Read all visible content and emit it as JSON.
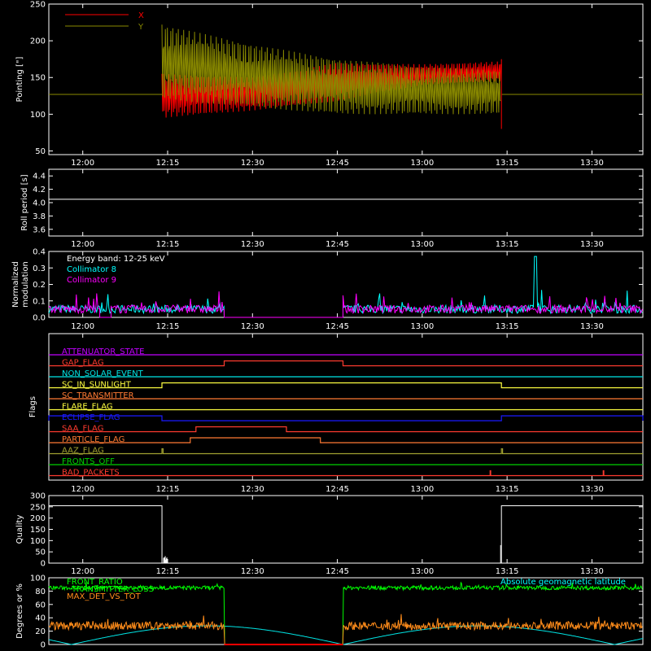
{
  "time_axis": {
    "start": "11:54",
    "end": "13:39",
    "ticks": [
      "12:00",
      "12:15",
      "12:30",
      "12:45",
      "13:00",
      "13:15",
      "13:30"
    ]
  },
  "colors": {
    "x": "#ff0000",
    "y": "#8a8a00",
    "white": "#ffffff",
    "cyan": "#00ffff",
    "magenta": "#ff00ff",
    "green": "#00ff00",
    "orange": "#ff8c1a",
    "flag_magenta": "#c000ff",
    "flag_red": "#ff3b2f",
    "flag_cyan": "#00e5e5",
    "flag_yellow": "#ffff40",
    "flag_orange": "#ff7a33",
    "flag_blue": "#1a1aff",
    "flag_olive": "#a0a030",
    "flag_green": "#00d000"
  },
  "chart_data": [
    {
      "id": "pointing",
      "type": "line",
      "ylabel": "Pointing [\"]",
      "ylim": [
        45,
        250
      ],
      "yticks": [
        50,
        100,
        150,
        200,
        250
      ],
      "legend": [
        "X",
        "Y"
      ],
      "legend_placement": "top-left",
      "series": [
        {
          "name": "X",
          "color": "#ff0000",
          "quiet_value": 127,
          "active_start": "12:14",
          "active_end": "13:14",
          "envelope": [
            {
              "t": "12:14",
              "lo": 95,
              "hi": 155
            },
            {
              "t": "12:30",
              "lo": 105,
              "hi": 150
            },
            {
              "t": "12:45",
              "lo": 118,
              "hi": 170
            },
            {
              "t": "13:00",
              "lo": 140,
              "hi": 168
            },
            {
              "t": "13:14",
              "lo": 145,
              "hi": 172
            }
          ]
        },
        {
          "name": "Y",
          "color": "#8a8a00",
          "quiet_value": 127,
          "envelope": [
            {
              "t": "12:14",
              "lo": 120,
              "hi": 222
            },
            {
              "t": "12:30",
              "lo": 110,
              "hi": 195
            },
            {
              "t": "12:45",
              "lo": 100,
              "hi": 175
            },
            {
              "t": "13:00",
              "lo": 100,
              "hi": 165
            },
            {
              "t": "13:14",
              "lo": 100,
              "hi": 160
            }
          ]
        }
      ]
    },
    {
      "id": "roll",
      "type": "line",
      "ylabel": "Roll period [s]",
      "ylim": [
        3.5,
        4.5
      ],
      "yticks": [
        3.6,
        3.8,
        4.0,
        4.2,
        4.4
      ],
      "series": [
        {
          "name": "",
          "color": "#ffffff",
          "constant": 4.05
        }
      ]
    },
    {
      "id": "modulation",
      "type": "line",
      "ylabel": "Normalized modulation",
      "ylim": [
        0,
        0.4
      ],
      "yticks": [
        0.0,
        0.1,
        0.2,
        0.3,
        0.4
      ],
      "annotation": "Energy band: 12-25 keV",
      "legend": [
        "Collimator 8",
        "Collimator 9"
      ],
      "gap_value": 0,
      "baseline": 0.05,
      "series": [
        {
          "name": "Collimator 8",
          "color": "#00ffff",
          "active": [
            [
              "11:54",
              "12:25"
            ],
            [
              "12:46",
              "13:39"
            ]
          ]
        },
        {
          "name": "Collimator 9",
          "color": "#ff00ff",
          "active": [
            [
              "11:54",
              "12:03"
            ],
            [
              "12:05",
              "12:25"
            ],
            [
              "12:46",
              "13:39"
            ]
          ]
        }
      ]
    },
    {
      "id": "flags",
      "type": "line",
      "ylabel": "Flags",
      "flags": [
        {
          "name": "ATTENUATOR_STATE",
          "color": "#c000ff",
          "high": []
        },
        {
          "name": "GAP_FLAG",
          "color": "#ff3b2f",
          "high": [
            [
              "12:25",
              "12:46"
            ]
          ]
        },
        {
          "name": "NON_SOLAR_EVENT",
          "color": "#00e5e5",
          "high": []
        },
        {
          "name": "SC_IN_SUNLIGHT",
          "color": "#ffff40",
          "high": [
            [
              "12:14",
              "13:14"
            ]
          ]
        },
        {
          "name": "SC_TRANSMITTER",
          "color": "#ff7a33",
          "high": []
        },
        {
          "name": "FLARE_FLAG",
          "color": "#ffff40",
          "high": []
        },
        {
          "name": "ECLIPSE_FLAG",
          "color": "#1a1aff",
          "high": [
            [
              "11:54",
              "12:14"
            ],
            [
              "13:14",
              "13:39"
            ]
          ]
        },
        {
          "name": "SAA_FLAG",
          "color": "#ff3b2f",
          "high": [
            [
              "12:20",
              "12:36"
            ]
          ]
        },
        {
          "name": "PARTICLE_FLAG",
          "color": "#ff7a33",
          "high": [
            [
              "12:19",
              "12:42"
            ]
          ]
        },
        {
          "name": "AAZ_FLAG",
          "color": "#a0a030",
          "high": [
            [
              "12:14",
              "12:14.2"
            ],
            [
              "13:14",
              "13:14.2"
            ]
          ]
        },
        {
          "name": "FRONTS_OFF",
          "color": "#00d000",
          "high": []
        },
        {
          "name": "BAD_PACKETS",
          "color": "#ff3b2f",
          "high": [
            [
              "13:12",
              "13:12.1"
            ],
            [
              "13:32",
              "13:32.1"
            ]
          ]
        }
      ]
    },
    {
      "id": "quality",
      "type": "line",
      "ylabel": "Quality",
      "ylim": [
        0,
        300
      ],
      "yticks": [
        0,
        50,
        100,
        150,
        200,
        250,
        300
      ],
      "series": [
        {
          "name": "",
          "color": "#ffffff",
          "high_value": 255,
          "high_periods": [
            [
              "11:54",
              "12:14"
            ],
            [
              "13:14",
              "13:39"
            ]
          ]
        }
      ]
    },
    {
      "id": "ratios",
      "type": "line",
      "ylabel": "Degrees or %",
      "ylim": [
        0,
        100
      ],
      "yticks": [
        0,
        20,
        40,
        60,
        80,
        100
      ],
      "labels": [
        "FRONT_RATIO",
        "TRANSMITTER_LOSS",
        "MAX_DET_VS_TOT",
        "Absolute geomagnetic latitude"
      ],
      "gap": [
        "12:25",
        "12:46"
      ],
      "series": [
        {
          "name": "FRONT_RATIO",
          "color": "#00ff00",
          "mean": 85
        },
        {
          "name": "TRANSMITTER_LOSS",
          "color": "#ff0000",
          "mean": 0
        },
        {
          "name": "MAX_DET_VS_TOT",
          "color": "#ff8c1a",
          "mean": 28
        },
        {
          "name": "Absolute geomagnetic latitude",
          "color": "#00e5e5",
          "min": 0,
          "max": 28
        }
      ]
    }
  ]
}
